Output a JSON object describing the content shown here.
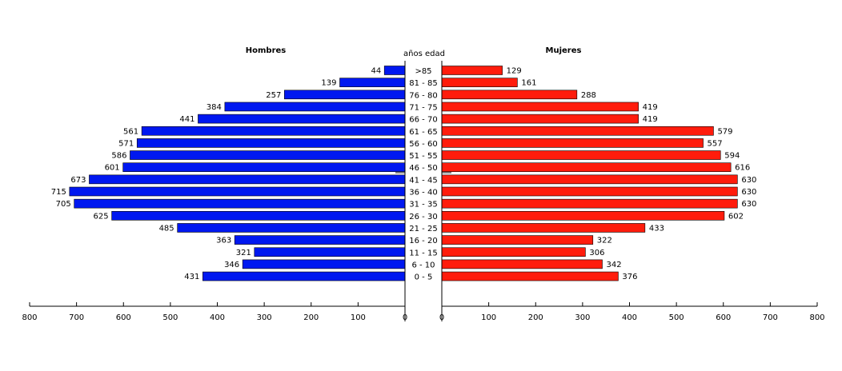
{
  "chart_data": {
    "type": "bar",
    "subtype": "population-pyramid",
    "center_label": "años edad",
    "left_title": "Hombres",
    "right_title": "Mujeres",
    "xlim": [
      0,
      800
    ],
    "ticks": [
      0,
      100,
      200,
      300,
      400,
      500,
      600,
      700,
      800
    ],
    "categories": [
      ">85",
      "81 - 85",
      "76 - 80",
      "71 - 75",
      "66 - 70",
      "61 - 65",
      "56 - 60",
      "51 - 55",
      "46 - 50",
      "41 - 45",
      "36 - 40",
      "31 - 35",
      "26 - 30",
      "21 - 25",
      "16 - 20",
      "11 - 15",
      "6 - 10",
      "0 - 5"
    ],
    "series": [
      {
        "name": "Hombres",
        "color": "#0018f0",
        "values": [
          44,
          139,
          257,
          384,
          441,
          561,
          571,
          586,
          601,
          673,
          715,
          705,
          625,
          485,
          363,
          321,
          346,
          431
        ]
      },
      {
        "name": "Mujeres",
        "color": "#ff1c0c",
        "values": [
          129,
          161,
          288,
          419,
          419,
          579,
          557,
          594,
          616,
          630,
          630,
          630,
          602,
          433,
          322,
          306,
          342,
          376
        ]
      }
    ]
  }
}
